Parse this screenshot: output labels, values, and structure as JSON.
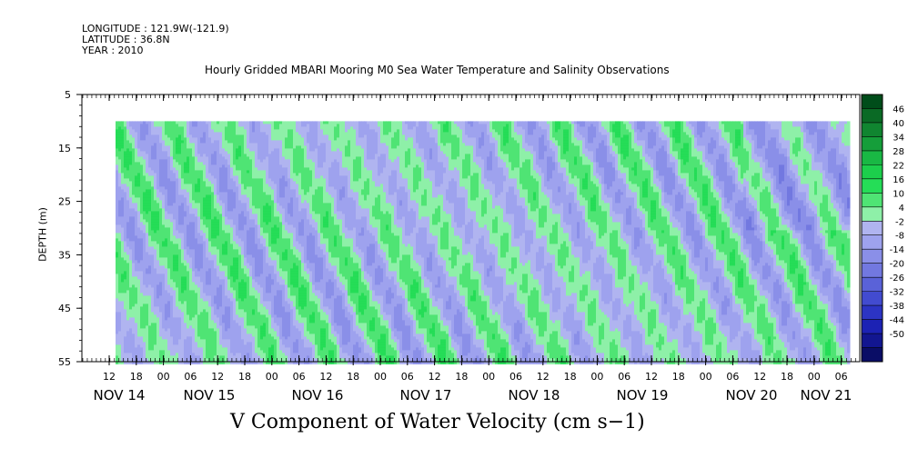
{
  "header": {
    "longitude": "LONGITUDE : 121.9W(-121.9)",
    "latitude": "LATITUDE : 36.8N",
    "year": "YEAR : 2010"
  },
  "chart_data": {
    "type": "heatmap",
    "title": "Hourly Gridded MBARI Mooring M0 Sea Water Temperature and Salinity Observations",
    "xlabel": "V Component of Water Velocity (cm s−1)",
    "ylabel": "DEPTH (m)",
    "ylim": [
      55,
      5
    ],
    "y_ticks": [
      5,
      15,
      25,
      35,
      45,
      55
    ],
    "data_depth_range": [
      10,
      55
    ],
    "x_start_hour": "12",
    "x_hour_ticks": [
      "12",
      "18",
      "00",
      "06",
      "12",
      "18",
      "00",
      "06",
      "12",
      "18",
      "00",
      "06",
      "12",
      "18",
      "00",
      "06",
      "12",
      "18",
      "00",
      "06",
      "12",
      "18",
      "00",
      "06",
      "12",
      "18",
      "00",
      "06"
    ],
    "x_day_labels": [
      "NOV 14",
      "NOV 15",
      "NOV 16",
      "NOV 17",
      "NOV 18",
      "NOV 19",
      "NOV 20",
      "NOV 21"
    ],
    "colorbar": {
      "labels": [
        "46",
        "40",
        "34",
        "28",
        "22",
        "16",
        "10",
        "4",
        "-2",
        "-8",
        "-14",
        "-20",
        "-26",
        "-32",
        "-38",
        "-44",
        "-50"
      ],
      "colors": [
        "#004d1a",
        "#0a6a25",
        "#108530",
        "#159e3a",
        "#19b844",
        "#1ccf4c",
        "#25dd57",
        "#4fe474",
        "#8ef0a8",
        "#b0b4f0",
        "#9ea2ee",
        "#8a8fe8",
        "#7278e0",
        "#5a62d8",
        "#424bd0",
        "#2c34c4",
        "#1c22b4",
        "#121690",
        "#0a0d66"
      ]
    },
    "pattern": "alternating positive (green) and negative (blue) bands with downward tilt; period about 12.4 hours"
  }
}
